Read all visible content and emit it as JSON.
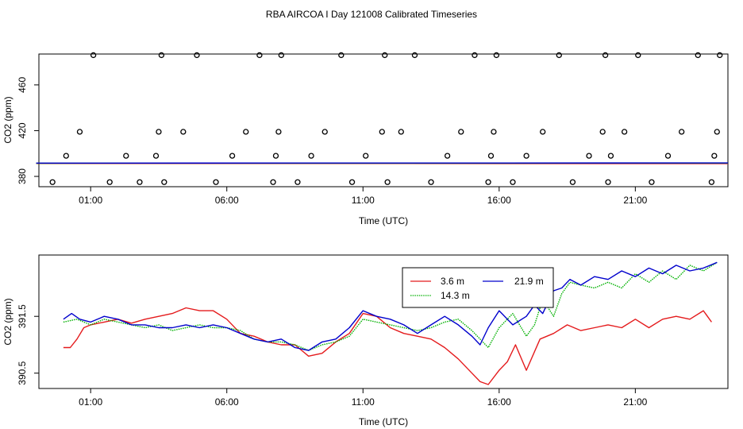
{
  "title": "RBA AIRCOA I  Day 121008  Calibrated Timeseries",
  "colors": {
    "red": "#e41a1c",
    "green": "#00b000",
    "blue": "#0000cc",
    "black": "#000000"
  },
  "chart_data": [
    {
      "type": "scatter",
      "xlabel": "Time (UTC)",
      "ylabel": "CO2 (ppm)",
      "xlim": [
        -0.9,
        24.4
      ],
      "ylim": [
        371,
        487
      ],
      "xticks": [
        1,
        6,
        11,
        16,
        21
      ],
      "xtick_labels": [
        "01:00",
        "06:00",
        "11:00",
        "16:00",
        "21:00"
      ],
      "yticks": [
        380,
        420,
        460
      ],
      "ytick_labels": [
        "380",
        "420",
        "460"
      ],
      "outlier_points": {
        "x": [
          -0.4,
          0.1,
          0.6,
          1.1,
          1.7,
          2.3,
          2.8,
          3.4,
          3.5,
          3.6,
          3.7,
          4.4,
          4.9,
          5.6,
          6.2,
          6.7,
          7.2,
          7.7,
          7.8,
          7.9,
          8.0,
          8.6,
          9.1,
          9.6,
          10.2,
          10.6,
          11.1,
          11.7,
          11.8,
          11.9,
          12.4,
          12.9,
          13.5,
          14.1,
          14.6,
          15.1,
          15.6,
          15.7,
          15.8,
          15.9,
          16.5,
          17.0,
          17.6,
          18.2,
          18.7,
          19.3,
          19.8,
          19.9,
          20.0,
          20.1,
          20.6,
          21.1,
          21.6,
          22.2,
          22.7,
          23.3,
          23.8,
          23.9,
          24.0,
          24.1
        ],
        "y": [
          375,
          398,
          419,
          486,
          375,
          398,
          375,
          398,
          419,
          486,
          375,
          419,
          486,
          375,
          398,
          419,
          486,
          375,
          398,
          419,
          486,
          375,
          398,
          419,
          486,
          375,
          398,
          419,
          486,
          375,
          419,
          486,
          375,
          398,
          419,
          486,
          375,
          398,
          419,
          486,
          375,
          398,
          419,
          486,
          375,
          398,
          419,
          486,
          375,
          398,
          419,
          486,
          375,
          398,
          419,
          486,
          375,
          398,
          419,
          486
        ]
      },
      "series": [
        {
          "name": "3.6 m",
          "color": "#e41a1c",
          "x": [
            -1,
            24.4
          ],
          "y": [
            391.3,
            391.2
          ]
        },
        {
          "name": "14.3 m",
          "color": "#00b000",
          "x": [
            -1,
            24.4
          ],
          "y": [
            391.5,
            391.6
          ]
        },
        {
          "name": "21.9 m",
          "color": "#0000cc",
          "x": [
            -1,
            24.4
          ],
          "y": [
            391.6,
            391.8
          ]
        }
      ]
    },
    {
      "type": "line",
      "xlabel": "Time (UTC)",
      "ylabel": "CO2 (ppm)",
      "xlim": [
        -0.9,
        24.4
      ],
      "ylim": [
        390.23,
        392.58
      ],
      "xticks": [
        1,
        6,
        11,
        16,
        21
      ],
      "xtick_labels": [
        "01:00",
        "06:00",
        "11:00",
        "16:00",
        "21:00"
      ],
      "yticks": [
        390.5,
        391.5
      ],
      "ytick_labels": [
        "390.5",
        "391.5"
      ],
      "legend": {
        "position": "top-center",
        "entries": [
          "3.6 m",
          "14.3 m",
          "21.9 m"
        ]
      },
      "series": [
        {
          "name": "3.6 m",
          "color": "#e41a1c",
          "line_style": "solid",
          "x": [
            0,
            0.25,
            0.5,
            0.75,
            1,
            1.5,
            2,
            2.5,
            3,
            3.5,
            4,
            4.5,
            5,
            5.5,
            6,
            6.5,
            7,
            7.5,
            8,
            8.5,
            9,
            9.5,
            10,
            10.5,
            11,
            11.5,
            12,
            12.5,
            13,
            13.5,
            14,
            14.5,
            15,
            15.3,
            15.6,
            16,
            16.3,
            16.6,
            17,
            17.5,
            18,
            18.5,
            19,
            19.5,
            20,
            20.5,
            21,
            21.5,
            22,
            22.5,
            23,
            23.5,
            23.8
          ],
          "y": [
            390.95,
            390.95,
            391.1,
            391.3,
            391.35,
            391.4,
            391.45,
            391.38,
            391.45,
            391.5,
            391.55,
            391.65,
            391.6,
            391.6,
            391.45,
            391.2,
            391.15,
            391.05,
            391.0,
            391.0,
            390.8,
            390.85,
            391.05,
            391.2,
            391.55,
            391.5,
            391.3,
            391.2,
            391.15,
            391.1,
            390.95,
            390.75,
            390.5,
            390.35,
            390.3,
            390.55,
            390.7,
            391.0,
            390.55,
            391.1,
            391.2,
            391.35,
            391.25,
            391.3,
            391.35,
            391.3,
            391.45,
            391.3,
            391.45,
            391.5,
            391.45,
            391.6,
            391.4
          ]
        },
        {
          "name": "14.3 m",
          "color": "#00b000",
          "line_style": "dotted",
          "x": [
            0,
            0.5,
            1,
            1.5,
            2,
            2.5,
            3,
            3.5,
            4,
            4.5,
            5,
            5.5,
            6,
            6.5,
            7,
            7.5,
            8,
            8.5,
            9,
            9.5,
            10,
            10.5,
            11,
            11.5,
            12,
            12.5,
            13,
            13.5,
            14,
            14.5,
            15,
            15.3,
            15.6,
            16,
            16.5,
            17,
            17.3,
            17.6,
            18,
            18.3,
            18.6,
            19,
            19.5,
            20,
            20.5,
            21,
            21.5,
            22,
            22.5,
            23,
            23.5,
            24
          ],
          "y": [
            391.4,
            391.45,
            391.35,
            391.45,
            391.4,
            391.35,
            391.3,
            391.35,
            391.25,
            391.3,
            391.35,
            391.3,
            391.3,
            391.25,
            391.1,
            391.05,
            391.05,
            391.0,
            390.9,
            391.0,
            391.05,
            391.15,
            391.45,
            391.4,
            391.35,
            391.3,
            391.25,
            391.3,
            391.4,
            391.45,
            391.25,
            391.1,
            390.95,
            391.3,
            391.55,
            391.15,
            391.35,
            391.8,
            391.5,
            391.9,
            392.1,
            392.05,
            392.0,
            392.1,
            392.0,
            392.25,
            392.1,
            392.3,
            392.15,
            392.4,
            392.3,
            392.45
          ]
        },
        {
          "name": "21.9 m",
          "color": "#0000cc",
          "line_style": "solid",
          "x": [
            0,
            0.3,
            0.6,
            1,
            1.5,
            2,
            2.5,
            3,
            3.5,
            4,
            4.5,
            5,
            5.5,
            6,
            6.5,
            7,
            7.5,
            8,
            8.5,
            9,
            9.5,
            10,
            10.5,
            11,
            11.5,
            12,
            12.5,
            13,
            13.5,
            14,
            14.5,
            15,
            15.3,
            15.6,
            16,
            16.5,
            17,
            17.3,
            17.6,
            18,
            18.3,
            18.6,
            19,
            19.5,
            20,
            20.5,
            21,
            21.5,
            22,
            22.5,
            23,
            23.5,
            24
          ],
          "y": [
            391.45,
            391.55,
            391.45,
            391.4,
            391.5,
            391.45,
            391.35,
            391.35,
            391.3,
            391.3,
            391.35,
            391.3,
            391.35,
            391.3,
            391.2,
            391.1,
            391.05,
            391.1,
            390.95,
            390.9,
            391.05,
            391.1,
            391.3,
            391.6,
            391.5,
            391.45,
            391.35,
            391.2,
            391.35,
            391.5,
            391.35,
            391.15,
            391.0,
            391.3,
            391.6,
            391.35,
            391.5,
            391.7,
            391.55,
            391.95,
            392.0,
            392.15,
            392.05,
            392.2,
            392.15,
            392.3,
            392.2,
            392.35,
            392.25,
            392.4,
            392.3,
            392.35,
            392.45
          ]
        }
      ]
    }
  ]
}
